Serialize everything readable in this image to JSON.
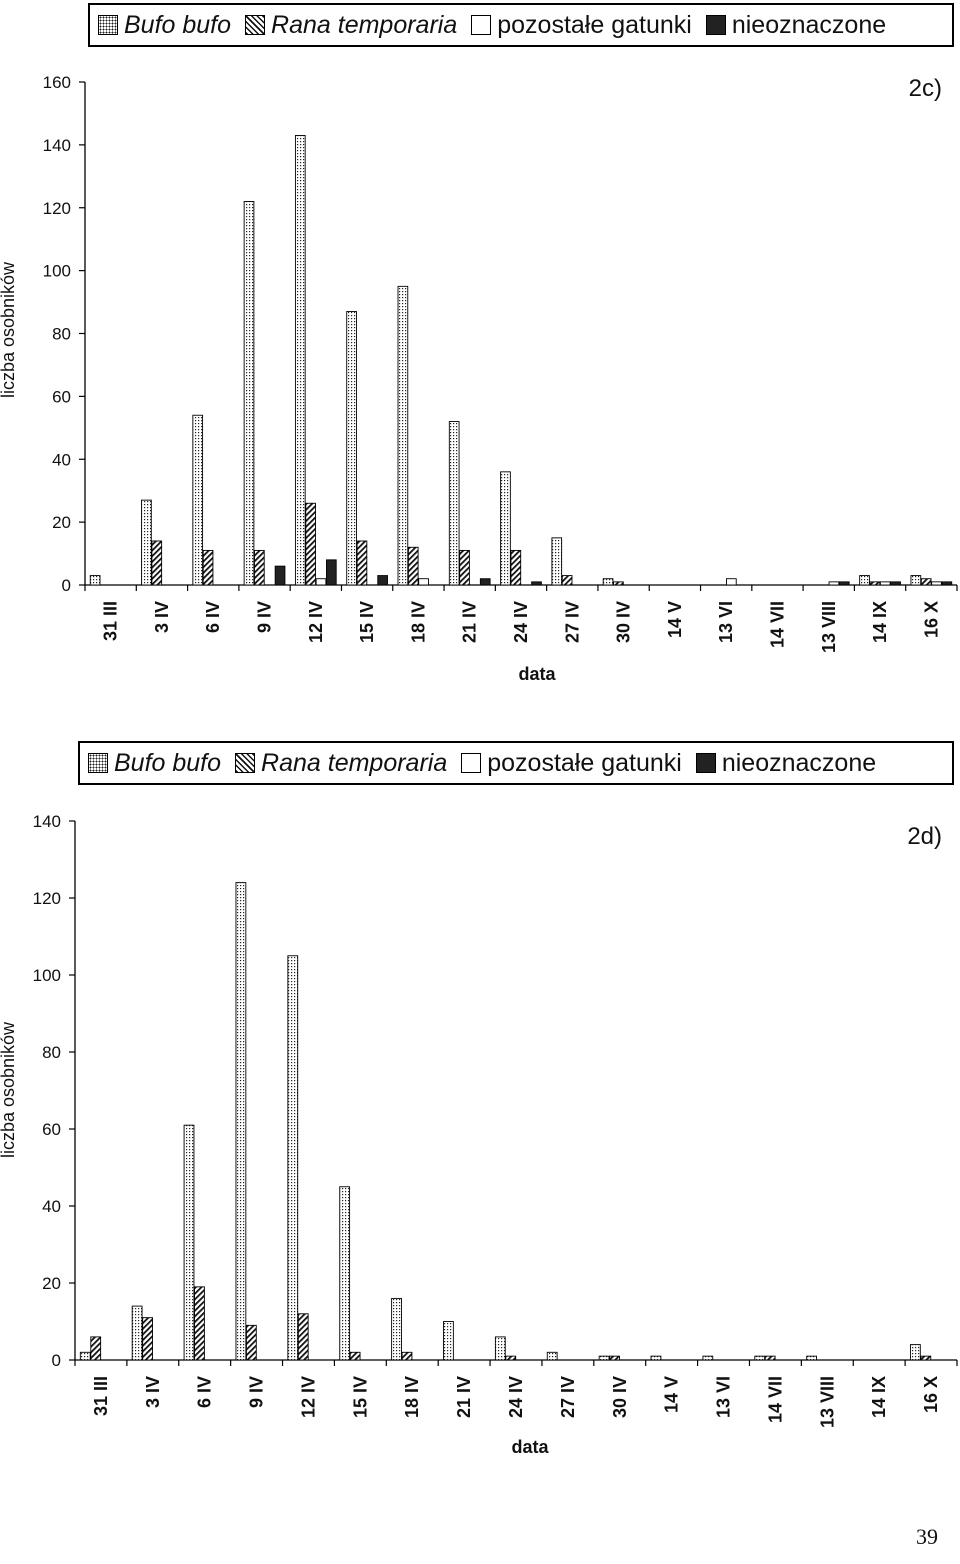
{
  "panels": [
    {
      "legend": {
        "items": [
          {
            "label": "Bufo bufo",
            "pattern": "dots",
            "italic": true
          },
          {
            "label": "Rana temporaria",
            "pattern": "hatch",
            "italic": true
          },
          {
            "label": "pozostałe gatunki",
            "pattern": "white",
            "italic": false
          },
          {
            "label": "nieoznaczone",
            "pattern": "black",
            "italic": false
          }
        ]
      },
      "chart_data": {
        "type": "bar",
        "label": "2c)",
        "xlabel": "data",
        "ylabel": "liczba osobników",
        "ylim": [
          0,
          160
        ],
        "yticks": [
          0,
          20,
          40,
          60,
          80,
          100,
          120,
          140,
          160
        ],
        "grid": false,
        "legend_position": "top",
        "categories": [
          "31 III",
          "3 IV",
          "6 IV",
          "9 IV",
          "12 IV",
          "15 IV",
          "18 IV",
          "21 IV",
          "24 IV",
          "27 IV",
          "30 IV",
          "14 V",
          "13 VI",
          "14 VII",
          "13 VIII",
          "14 IX",
          "16 X"
        ],
        "series": [
          {
            "name": "Bufo bufo",
            "values": [
              3,
              27,
              54,
              122,
              143,
              87,
              95,
              52,
              36,
              15,
              2,
              0,
              0,
              0,
              0,
              3,
              3
            ]
          },
          {
            "name": "Rana temporaria",
            "values": [
              0,
              14,
              11,
              11,
              26,
              14,
              12,
              11,
              11,
              3,
              1,
              0,
              0,
              0,
              0,
              1,
              2
            ]
          },
          {
            "name": "pozostałe gatunki",
            "values": [
              0,
              0,
              0,
              0,
              2,
              0,
              2,
              0,
              0,
              0,
              0,
              0,
              2,
              0,
              1,
              1,
              1
            ]
          },
          {
            "name": "nieoznaczone",
            "values": [
              0,
              0,
              0,
              6,
              8,
              3,
              0,
              2,
              1,
              0,
              0,
              0,
              0,
              0,
              1,
              1,
              1
            ]
          }
        ]
      }
    },
    {
      "legend": {
        "items": [
          {
            "label": "Bufo bufo",
            "pattern": "dots",
            "italic": true
          },
          {
            "label": "Rana temporaria",
            "pattern": "hatch",
            "italic": true
          },
          {
            "label": "pozostałe gatunki",
            "pattern": "white",
            "italic": false
          },
          {
            "label": "nieoznaczone",
            "pattern": "black",
            "italic": false
          }
        ]
      },
      "chart_data": {
        "type": "bar",
        "label": "2d)",
        "xlabel": "data",
        "ylabel": "liczba osobników",
        "ylim": [
          0,
          140
        ],
        "yticks": [
          0,
          20,
          40,
          60,
          80,
          100,
          120,
          140
        ],
        "grid": false,
        "legend_position": "top",
        "categories": [
          "31 III",
          "3 IV",
          "6 IV",
          "9 IV",
          "12 IV",
          "15 IV",
          "18 IV",
          "21 IV",
          "24 IV",
          "27 IV",
          "30 IV",
          "14 V",
          "13 VI",
          "14 VII",
          "13 VIII",
          "14 IX",
          "16 X"
        ],
        "series": [
          {
            "name": "Bufo bufo",
            "values": [
              2,
              14,
              61,
              124,
              105,
              45,
              16,
              10,
              6,
              2,
              1,
              1,
              1,
              1,
              1,
              0,
              4
            ]
          },
          {
            "name": "Rana temporaria",
            "values": [
              6,
              11,
              19,
              9,
              12,
              2,
              2,
              0,
              1,
              0,
              1,
              0,
              0,
              1,
              0,
              0,
              1
            ]
          },
          {
            "name": "pozostałe gatunki",
            "values": [
              0,
              0,
              0,
              0,
              0,
              0,
              0,
              0,
              0,
              0,
              0,
              0,
              0,
              0,
              0,
              0,
              0
            ]
          },
          {
            "name": "nieoznaczone",
            "values": [
              0,
              0,
              0,
              0,
              0,
              0,
              0,
              0,
              0,
              0,
              0,
              0,
              0,
              0,
              0,
              0,
              0
            ]
          }
        ]
      }
    }
  ],
  "page_number": "39"
}
